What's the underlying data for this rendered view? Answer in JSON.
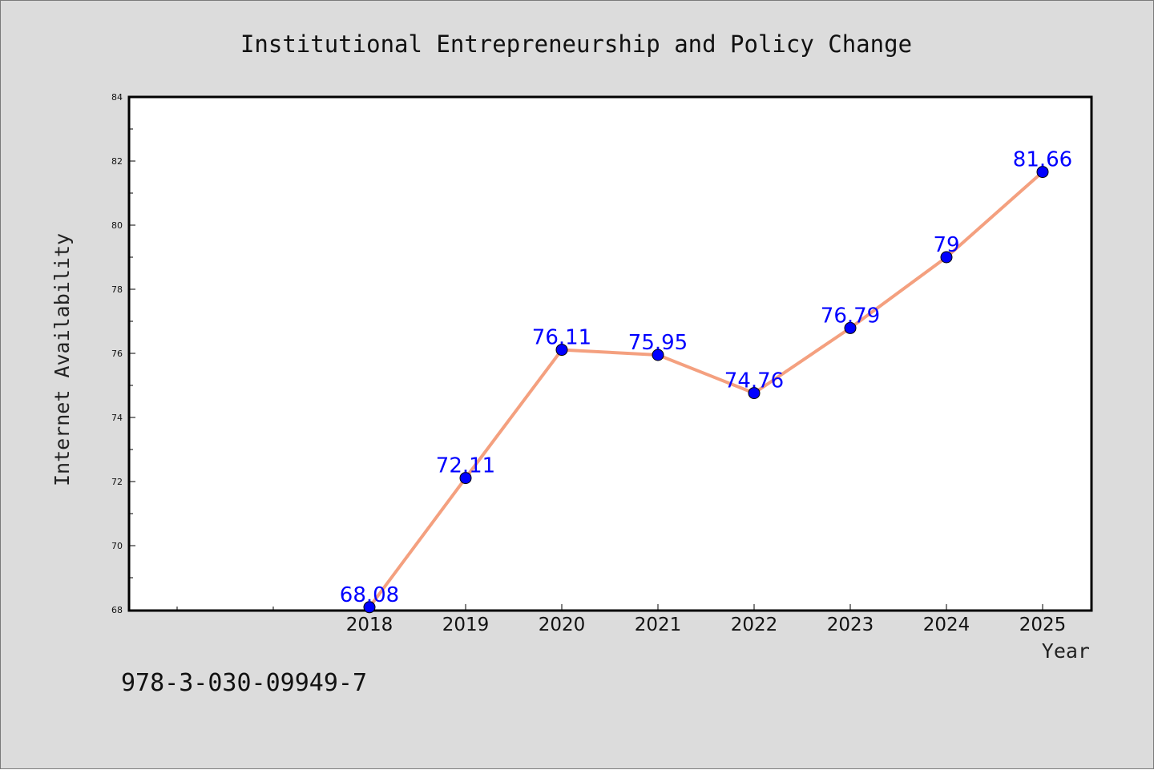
{
  "chart_data": {
    "type": "line",
    "title": "Institutional Entrepreneurship and Policy Change",
    "xlabel": "Year",
    "ylabel": "Internet Availability",
    "x": [
      "2018",
      "2019",
      "2020",
      "2021",
      "2022",
      "2023",
      "2024",
      "2025"
    ],
    "y": [
      68.08,
      72.11,
      76.11,
      75.95,
      74.76,
      76.79,
      79,
      81.66
    ],
    "data_labels": [
      "68.08",
      "72.11",
      "76.11",
      "75.95",
      "74.76",
      "76.79",
      "79",
      "81.66"
    ],
    "ylim": [
      68,
      84
    ],
    "yticks": [
      "68",
      "70",
      "72",
      "74",
      "76",
      "78",
      "80",
      "82",
      "84"
    ],
    "grid": false,
    "line_color": "#f4a07f",
    "marker_color": "#0000ff",
    "label_color": "#0000ff",
    "background_color": "#dcdcdc",
    "plot_background_color": "#ffffff"
  },
  "footer": {
    "code": "978-3-030-09949-7"
  }
}
